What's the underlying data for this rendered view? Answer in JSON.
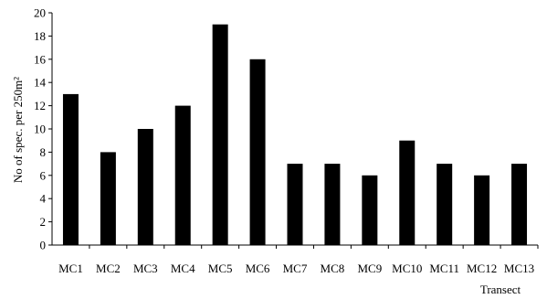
{
  "chart_data": {
    "type": "bar",
    "categories": [
      "MC1",
      "MC2",
      "MC3",
      "MC4",
      "MC5",
      "MC6",
      "MC7",
      "MC8",
      "MC9",
      "MC10",
      "MC11",
      "MC12",
      "MC13"
    ],
    "values": [
      13,
      8,
      10,
      12,
      19,
      16,
      7,
      7,
      6,
      9,
      7,
      6,
      7
    ],
    "title": "",
    "xlabel": "Transect",
    "ylabel": "No of spec. per 250m²",
    "ylim": [
      0,
      20
    ],
    "yticks": [
      0,
      2,
      4,
      6,
      8,
      10,
      12,
      14,
      16,
      18,
      20
    ],
    "grid": false,
    "legend": "none",
    "bar_color": "#000000"
  }
}
